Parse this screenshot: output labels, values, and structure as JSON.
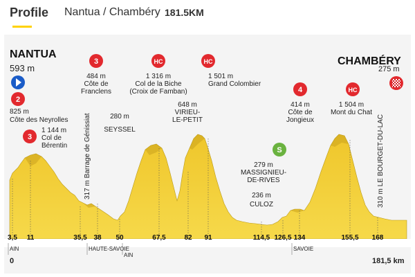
{
  "header": {
    "title": "Profile",
    "route": "Nantua / Chambéry",
    "distance": "181.5KM",
    "accent_color": "#ffd200"
  },
  "start": {
    "city": "NANTUA",
    "altitude": "593 m"
  },
  "finish": {
    "city": "CHAMBÉRY",
    "altitude": "275 m"
  },
  "climbs": [
    {
      "badge": "2",
      "altitude": "825 m",
      "name1": "Côte des Neyrolles",
      "name2": ""
    },
    {
      "badge": "3",
      "altitude": "1 144 m",
      "name1": "Col de",
      "name2": "Bérentin"
    },
    {
      "badge": "3",
      "altitude": "484 m",
      "name1": "Côte de",
      "name2": "Franclens"
    },
    {
      "badge": "HC",
      "altitude": "1 316 m",
      "name1": "Col de la Biche",
      "name2": "(Croix de Famban)"
    },
    {
      "badge": "HC",
      "altitude": "1 501 m",
      "name1": "Grand Colombier",
      "name2": ""
    },
    {
      "badge": "4",
      "altitude": "414 m",
      "name1": "Côte de",
      "name2": "Jongieux"
    },
    {
      "badge": "HC",
      "altitude": "1 504 m",
      "name1": "Mont du Chat",
      "name2": ""
    }
  ],
  "points": [
    {
      "altitude": "280 m",
      "name": "SEYSSEL"
    },
    {
      "altitude": "648 m",
      "name": "VIRIEU-",
      "name2": "LE-PETIT"
    },
    {
      "altitude": "279 m",
      "name": "MASSIGNIEU-",
      "name2": "DE-RIVES",
      "badge": "S"
    },
    {
      "altitude": "236 m",
      "name": "CULOZ"
    },
    {
      "vertical": "317 m Barrage de Génissiat"
    },
    {
      "vertical": "310 m LE BOURGET-DU-LAC"
    }
  ],
  "km_marks": [
    "3,5",
    "11",
    "35,5",
    "38",
    "50",
    "67,5",
    "82",
    "91",
    "114,5",
    "126,5",
    "134",
    "155,5",
    "168"
  ],
  "regions": [
    "AIN",
    "HAUTE-SAVOIE",
    "AIN",
    "SAVOIE"
  ],
  "axis": {
    "start": "0",
    "end": "181,5 km"
  },
  "colors": {
    "profile": "#f2cf2b",
    "shadow": "#c9a81d",
    "climb_badge": "#e2292e",
    "sprint_badge": "#6ab23f",
    "start_badge": "#1a5cc8"
  }
}
